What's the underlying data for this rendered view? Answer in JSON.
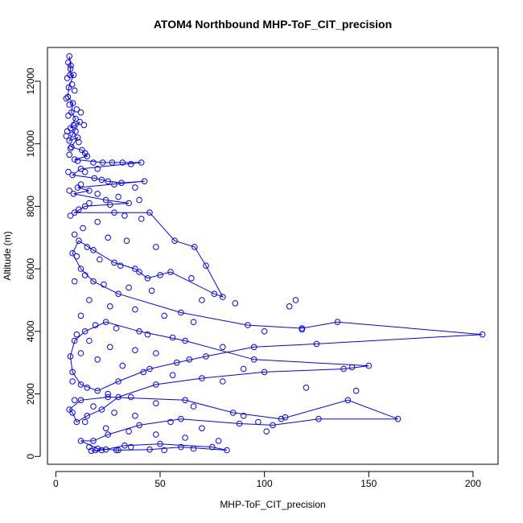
{
  "chart_data": {
    "type": "line",
    "title": "ATOM4 Northbound MHP-ToF_CIT_precision",
    "xlabel": "MHP-ToF_CIT_precision",
    "ylabel": "Altitude (m)",
    "xlim": [
      -4,
      212
    ],
    "ylim": [
      -250,
      13080
    ],
    "xticks": [
      0,
      50,
      100,
      150,
      200
    ],
    "yticks": [
      0,
      2000,
      4000,
      6000,
      8000,
      10000,
      12000
    ],
    "xtick_labels": [
      "0",
      "50",
      "100",
      "150",
      "200"
    ],
    "ytick_labels": [
      "0",
      "2000",
      "4000",
      "6000",
      "8000",
      "10000",
      "12000"
    ],
    "grid": false,
    "color": "#0000ff",
    "series": [
      {
        "values": [
          [
            6.5,
            12800
          ],
          [
            7.2,
            12500
          ],
          [
            6.8,
            12200
          ],
          [
            8.5,
            12200
          ],
          [
            6.2,
            11800
          ],
          [
            5.8,
            11500
          ],
          [
            8.2,
            11300
          ],
          [
            7.5,
            11000
          ],
          [
            9.5,
            10800
          ],
          [
            7.0,
            10500
          ],
          [
            11.5,
            10700
          ],
          [
            8.0,
            10300
          ],
          [
            6.5,
            10100
          ],
          [
            10.5,
            10200
          ],
          [
            7.5,
            9900
          ],
          [
            12.5,
            9800
          ],
          [
            15.0,
            9600
          ],
          [
            9.0,
            9500
          ],
          [
            22.5,
            9400
          ],
          [
            32.0,
            9400
          ],
          [
            41.0,
            9400
          ],
          [
            12.0,
            9200
          ],
          [
            8.0,
            9000
          ],
          [
            18.5,
            8900
          ],
          [
            25.0,
            8800
          ],
          [
            31.5,
            8750
          ],
          [
            42.5,
            8800
          ],
          [
            10.5,
            8600
          ],
          [
            16.0,
            8500
          ],
          [
            8.5,
            8400
          ],
          [
            24.0,
            8200
          ],
          [
            35.0,
            8100
          ],
          [
            14.0,
            8000
          ],
          [
            9.0,
            7800
          ],
          [
            28.0,
            7800
          ],
          [
            45.0,
            7800
          ],
          [
            57.0,
            6900
          ],
          [
            66.5,
            6700
          ],
          [
            72.0,
            6100
          ],
          [
            80.0,
            5100
          ],
          [
            76.0,
            5200
          ],
          [
            55.0,
            5900
          ],
          [
            44.0,
            5700
          ],
          [
            38.0,
            6000
          ],
          [
            28.0,
            6200
          ],
          [
            18.0,
            6600
          ],
          [
            11.0,
            6900
          ],
          [
            8.0,
            6500
          ],
          [
            12.0,
            6000
          ],
          [
            18.0,
            5600
          ],
          [
            30.0,
            5200
          ],
          [
            60.0,
            4600
          ],
          [
            92.0,
            4200
          ],
          [
            118.0,
            4100
          ],
          [
            135.0,
            4300
          ],
          [
            204.5,
            3900
          ],
          [
            125.0,
            3600
          ],
          [
            95.0,
            3500
          ],
          [
            72.0,
            3200
          ],
          [
            58.0,
            3000
          ],
          [
            45.0,
            2800
          ],
          [
            30.0,
            2400
          ],
          [
            20.0,
            2100
          ],
          [
            12.0,
            2300
          ],
          [
            8.0,
            2700
          ],
          [
            7.0,
            3200
          ],
          [
            9.0,
            3700
          ],
          [
            14.0,
            4000
          ],
          [
            24.0,
            4300
          ],
          [
            40.0,
            4000
          ],
          [
            62.0,
            3700
          ],
          [
            95.0,
            3100
          ],
          [
            150.0,
            2900
          ],
          [
            138.0,
            2800
          ],
          [
            100.0,
            2700
          ],
          [
            70.0,
            2500
          ],
          [
            48.0,
            2300
          ],
          [
            30.0,
            1900
          ],
          [
            22.0,
            1500
          ],
          [
            15.0,
            1300
          ],
          [
            10.0,
            1100
          ],
          [
            8.0,
            1400
          ],
          [
            6.5,
            1500
          ],
          [
            12.0,
            1800
          ],
          [
            25.0,
            1900
          ],
          [
            62.0,
            1800
          ],
          [
            85.0,
            1400
          ],
          [
            108.0,
            1200
          ],
          [
            140.0,
            1800
          ],
          [
            164.0,
            1200
          ],
          [
            126.0,
            1200
          ],
          [
            104.0,
            1000
          ],
          [
            88.0,
            1050
          ],
          [
            60.0,
            1200
          ],
          [
            40.0,
            1000
          ],
          [
            25.0,
            700
          ],
          [
            18.0,
            500
          ],
          [
            12.0,
            500
          ],
          [
            20.0,
            250
          ],
          [
            30.0,
            200
          ],
          [
            45.0,
            220
          ],
          [
            60.0,
            300
          ],
          [
            82.0,
            200
          ],
          [
            75.0,
            300
          ],
          [
            50.0,
            400
          ],
          [
            33.0,
            350
          ],
          [
            22.0,
            200
          ],
          [
            17.0,
            180
          ]
        ]
      }
    ],
    "scatter_points": [
      [
        6.0,
        12600
      ],
      [
        7.0,
        12400
      ],
      [
        5.5,
        12100
      ],
      [
        7.8,
        11900
      ],
      [
        9.0,
        11700
      ],
      [
        5.0,
        11450
      ],
      [
        6.5,
        11250
      ],
      [
        10.0,
        11100
      ],
      [
        12.0,
        11000
      ],
      [
        6.0,
        10900
      ],
      [
        8.5,
        10600
      ],
      [
        5.5,
        10400
      ],
      [
        13.5,
        10600
      ],
      [
        9.5,
        10400
      ],
      [
        5.0,
        10250
      ],
      [
        11.0,
        10050
      ],
      [
        7.0,
        9850
      ],
      [
        14.0,
        9700
      ],
      [
        6.5,
        9650
      ],
      [
        10.5,
        9450
      ],
      [
        18.0,
        9400
      ],
      [
        27.0,
        9400
      ],
      [
        36.0,
        9350
      ],
      [
        20.0,
        9200
      ],
      [
        14.0,
        9100
      ],
      [
        6.0,
        9100
      ],
      [
        22.0,
        8850
      ],
      [
        28.0,
        8700
      ],
      [
        38.0,
        8600
      ],
      [
        12.0,
        8700
      ],
      [
        6.5,
        8500
      ],
      [
        20.0,
        8400
      ],
      [
        30.0,
        8300
      ],
      [
        40.0,
        8200
      ],
      [
        16.0,
        8100
      ],
      [
        26.0,
        8050
      ],
      [
        11.0,
        7900
      ],
      [
        7.0,
        7700
      ],
      [
        33.0,
        7700
      ],
      [
        41.0,
        7600
      ],
      [
        20.0,
        7500
      ],
      [
        13.0,
        7300
      ],
      [
        9.0,
        7100
      ],
      [
        25.0,
        7000
      ],
      [
        34.0,
        6900
      ],
      [
        48.0,
        6700
      ],
      [
        15.0,
        6700
      ],
      [
        10.0,
        6400
      ],
      [
        21.0,
        6300
      ],
      [
        31.0,
        6100
      ],
      [
        40.0,
        5900
      ],
      [
        50.0,
        5800
      ],
      [
        65.0,
        5700
      ],
      [
        14.0,
        5800
      ],
      [
        9.0,
        5600
      ],
      [
        23.0,
        5500
      ],
      [
        35.0,
        5400
      ],
      [
        46.0,
        5300
      ],
      [
        70.0,
        5000
      ],
      [
        86.0,
        4900
      ],
      [
        115.0,
        5000
      ],
      [
        112.0,
        4800
      ],
      [
        16.0,
        5000
      ],
      [
        26.0,
        4800
      ],
      [
        38.0,
        4700
      ],
      [
        52.0,
        4500
      ],
      [
        66.0,
        4300
      ],
      [
        100.0,
        4000
      ],
      [
        118.0,
        4060
      ],
      [
        12.0,
        4500
      ],
      [
        19.0,
        4200
      ],
      [
        29.0,
        4100
      ],
      [
        44.0,
        3900
      ],
      [
        56.0,
        3800
      ],
      [
        80.0,
        3500
      ],
      [
        10.0,
        3900
      ],
      [
        16.0,
        3700
      ],
      [
        26.0,
        3500
      ],
      [
        38.0,
        3400
      ],
      [
        48.0,
        3300
      ],
      [
        64.0,
        3100
      ],
      [
        90.0,
        2800
      ],
      [
        142.0,
        2850
      ],
      [
        12.0,
        3300
      ],
      [
        20.0,
        3100
      ],
      [
        32.0,
        2900
      ],
      [
        42.0,
        2700
      ],
      [
        56.0,
        2600
      ],
      [
        80.0,
        2400
      ],
      [
        120.0,
        2200
      ],
      [
        144.0,
        2100
      ],
      [
        8.0,
        2400
      ],
      [
        15.0,
        2200
      ],
      [
        25.0,
        2000
      ],
      [
        36.0,
        1900
      ],
      [
        48.0,
        1700
      ],
      [
        66.0,
        1600
      ],
      [
        90.0,
        1300
      ],
      [
        97.0,
        1100
      ],
      [
        110.0,
        1250
      ],
      [
        9.0,
        1800
      ],
      [
        18.0,
        1600
      ],
      [
        28.0,
        1400
      ],
      [
        38.0,
        1300
      ],
      [
        55.0,
        1100
      ],
      [
        70.0,
        900
      ],
      [
        101.0,
        800
      ],
      [
        14.0,
        1100
      ],
      [
        24.0,
        900
      ],
      [
        35.0,
        800
      ],
      [
        48.0,
        700
      ],
      [
        62.0,
        600
      ],
      [
        78.0,
        500
      ],
      [
        16.0,
        300
      ],
      [
        24.0,
        220
      ],
      [
        36.0,
        300
      ],
      [
        52.0,
        200
      ],
      [
        66.0,
        250
      ],
      [
        29.0,
        200
      ],
      [
        19.0,
        200
      ]
    ]
  }
}
